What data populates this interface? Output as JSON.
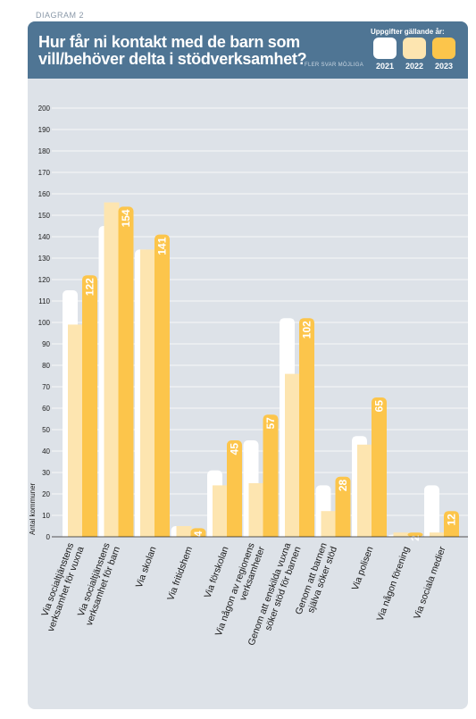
{
  "diagram_label": "DIAGRAM 2",
  "header": {
    "title_line1": "Hur får ni kontakt med de barn som",
    "title_line2": "vill/behöver delta i stödverksamhet?",
    "subtitle": "FLER SVAR MÖJLIGA",
    "legend_title": "Uppgifter gällande år:"
  },
  "colors": {
    "header_bg": "#4f7594",
    "plot_bg": "#dde2e8",
    "series_2021": "#ffffff",
    "series_2022": "#fde5b0",
    "series_2023": "#fcc54b"
  },
  "chart_data": {
    "type": "bar",
    "ylabel": "Antal kommuner",
    "ylim": [
      0,
      200
    ],
    "ytick_step": 10,
    "grid": true,
    "legend_position": "top-right",
    "categories": [
      "Via socialtjänstens verksamhet för vuxna",
      "Via socialtjänstens verksamhet för barn",
      "Via skolan",
      "Via fritidshem",
      "Via förskolan",
      "Via någon av regionens verksamheter",
      "Genom att enskilda vuxna söker stöd för barnen",
      "Genom att barnen själva söker stöd",
      "Via polisen",
      "Via någon förening",
      "Via sociala medier"
    ],
    "category_lines": [
      [
        "Via socialtjänstens",
        "verksamhet för vuxna"
      ],
      [
        "Via socialtjänstens",
        "verksamhet för barn"
      ],
      [
        "Via skolan"
      ],
      [
        "Via fritidshem"
      ],
      [
        "Via förskolan"
      ],
      [
        "Via någon av regionens",
        "verksamheter"
      ],
      [
        "Genom att enskilda vuxna",
        "söker stöd för barnen"
      ],
      [
        "Genom att barnen",
        "själva söker stöd"
      ],
      [
        "Via polisen"
      ],
      [
        "Via någon förening"
      ],
      [
        "Via sociala medier"
      ]
    ],
    "series": [
      {
        "name": "2021",
        "values": [
          115,
          145,
          134,
          5,
          31,
          45,
          102,
          24,
          47,
          1,
          24
        ]
      },
      {
        "name": "2022",
        "values": [
          99,
          156,
          134,
          5,
          24,
          25,
          76,
          12,
          43,
          2,
          2
        ]
      },
      {
        "name": "2023",
        "values": [
          122,
          154,
          141,
          4,
          45,
          57,
          102,
          28,
          65,
          2,
          12
        ]
      }
    ],
    "data_labels": [
      "122",
      "154",
      "141",
      "4",
      "45",
      "57",
      "102",
      "28",
      "65",
      "2",
      "12"
    ]
  }
}
